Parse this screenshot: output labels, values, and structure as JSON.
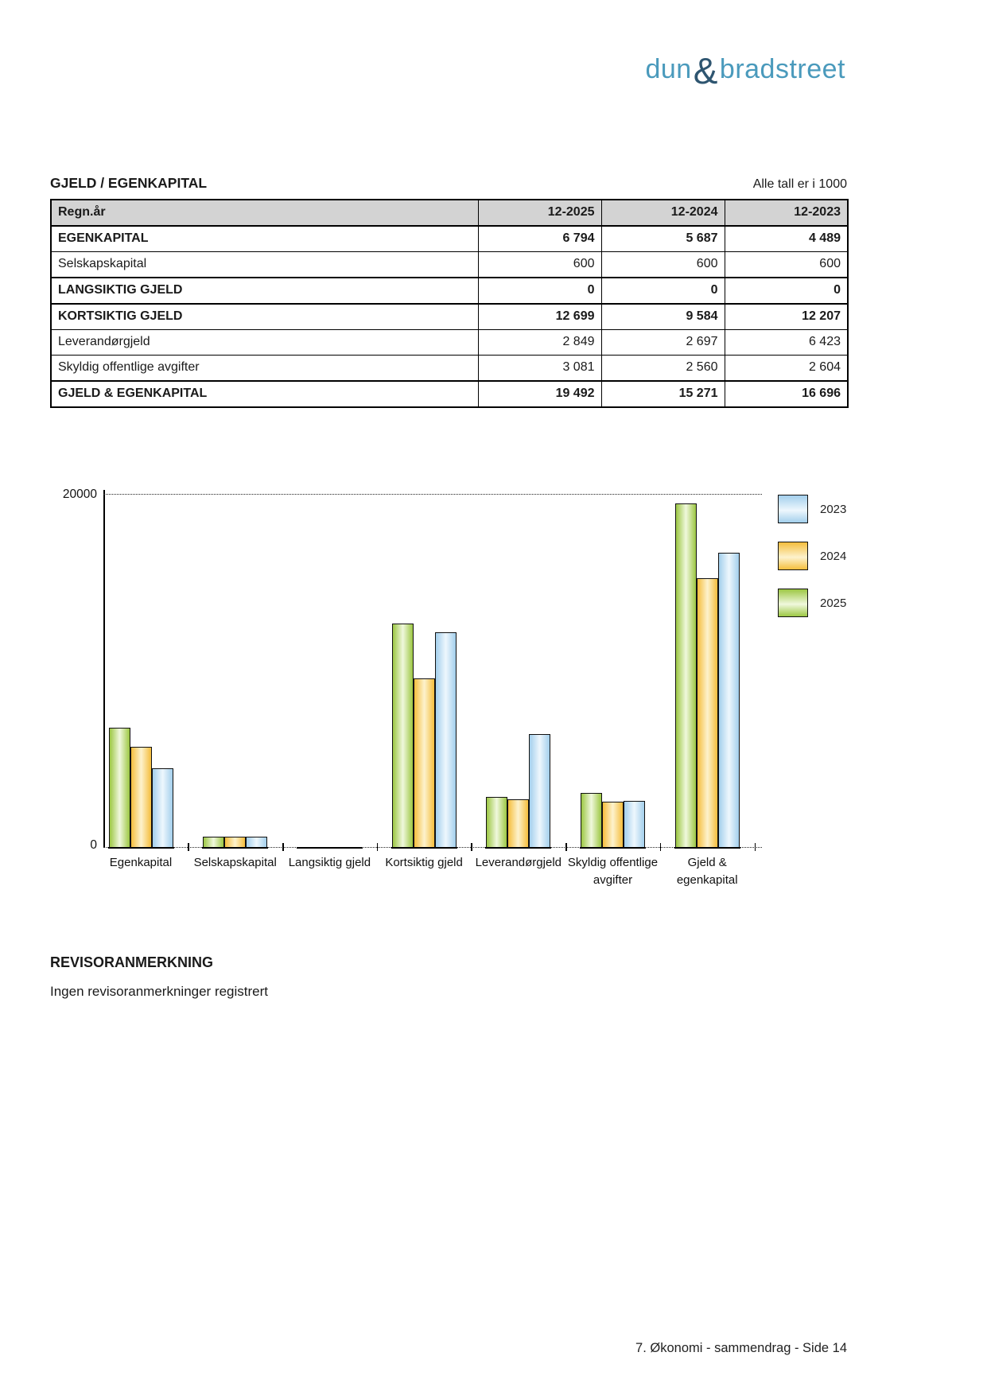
{
  "logo": {
    "dun": "dun",
    "amp": "&",
    "bradstreet": "bradstreet"
  },
  "section": {
    "title": "GJELD / EGENKAPITAL",
    "unit_note": "Alle tall er i 1000"
  },
  "table": {
    "header": [
      "Regn.år",
      "12-2025",
      "12-2024",
      "12-2023"
    ],
    "rows": [
      {
        "label": "EGENKAPITAL",
        "bold": true,
        "values": [
          "6 794",
          "5 687",
          "4 489"
        ]
      },
      {
        "label": "Selskapskapital",
        "bold": false,
        "values": [
          "600",
          "600",
          "600"
        ]
      },
      {
        "label": "LANGSIKTIG GJELD",
        "bold": true,
        "values": [
          "0",
          "0",
          "0"
        ]
      },
      {
        "label": "KORTSIKTIG GJELD",
        "bold": true,
        "values": [
          "12 699",
          "9 584",
          "12 207"
        ]
      },
      {
        "label": "Leverandørgjeld",
        "bold": false,
        "values": [
          "2 849",
          "2 697",
          "6 423"
        ]
      },
      {
        "label": "Skyldig offentlige avgifter",
        "bold": false,
        "values": [
          "3 081",
          "2 560",
          "2 604"
        ]
      },
      {
        "label": "GJELD & EGENKAPITAL",
        "bold": true,
        "values": [
          "19 492",
          "15 271",
          "16 696"
        ]
      }
    ]
  },
  "chart_data": {
    "type": "bar",
    "categories": [
      "Egenkapital",
      "Selskapskapital",
      "Langsiktig gjeld",
      "Kortsiktig gjeld",
      "Leverandørgjeld",
      "Skyldig offentlige\navgifter",
      "Gjeld &\negenkapital"
    ],
    "series": [
      {
        "name": "2025",
        "color": "#9cc743",
        "color_light": "#f0f8dd",
        "values": [
          6794,
          600,
          0,
          12699,
          2849,
          3081,
          19492
        ]
      },
      {
        "name": "2024",
        "color": "#f5be3d",
        "color_light": "#fdf2cd",
        "values": [
          5687,
          600,
          0,
          9584,
          2697,
          2560,
          15271
        ]
      },
      {
        "name": "2023",
        "color": "#a3cfec",
        "color_light": "#eef7fd",
        "values": [
          4489,
          600,
          0,
          12207,
          6423,
          2604,
          16696
        ]
      }
    ],
    "legend": [
      "2023",
      "2024",
      "2025"
    ],
    "legend_position": "right",
    "ylim": [
      0,
      20000
    ],
    "ytick_labels": [
      "20000",
      "0"
    ],
    "grid": "dotted top and baseline only"
  },
  "revisor": {
    "title": "REVISORANMERKNING",
    "text": "Ingen revisoranmerkninger registrert"
  },
  "footer": {
    "text": "7. Økonomi - sammendrag - Side 14"
  }
}
